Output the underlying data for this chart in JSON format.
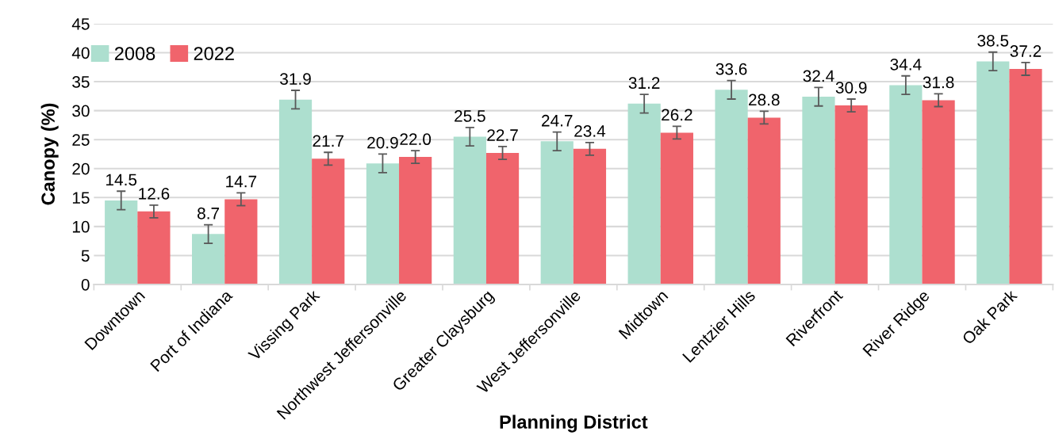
{
  "chart_data": {
    "type": "bar",
    "xlabel": "Planning District",
    "ylabel": "Canopy (%)",
    "categories": [
      "Downtown",
      "Port of Indiana",
      "Vissing Park",
      "Northwest Jeffersonville",
      "Greater Claysburg",
      "West Jeffersonville",
      "Midtown",
      "Lentzier Hills",
      "Riverfront",
      "River Ridge",
      "Oak Park"
    ],
    "series": [
      {
        "name": "2008",
        "color": "#addfcf",
        "values": [
          14.5,
          8.7,
          31.9,
          20.9,
          25.5,
          24.7,
          31.2,
          33.6,
          32.4,
          34.4,
          38.5
        ],
        "errors": [
          1.6,
          1.6,
          1.6,
          1.6,
          1.6,
          1.6,
          1.6,
          1.6,
          1.6,
          1.6,
          1.6
        ],
        "value_labels": [
          "14.5",
          "8.7",
          "31.9",
          "20.9",
          "25.5",
          "24.7",
          "31.2",
          "33.6",
          "32.4",
          "34.4",
          "38.5"
        ]
      },
      {
        "name": "2022",
        "color": "#f0646c",
        "values": [
          12.6,
          14.7,
          21.7,
          22.0,
          22.7,
          23.4,
          26.2,
          28.8,
          30.9,
          31.8,
          37.2
        ],
        "errors": [
          1.1,
          1.1,
          1.1,
          1.1,
          1.1,
          1.1,
          1.1,
          1.1,
          1.1,
          1.1,
          1.1
        ],
        "value_labels": [
          "12.6",
          "14.7",
          "21.7",
          "22.0",
          "22.7",
          "23.4",
          "26.2",
          "28.8",
          "30.9",
          "31.8",
          "37.2"
        ]
      }
    ],
    "ylim": [
      0,
      45
    ],
    "yticks": [
      0,
      5,
      10,
      15,
      20,
      25,
      30,
      35,
      40,
      45
    ],
    "grid": "y",
    "legend": "top left"
  }
}
